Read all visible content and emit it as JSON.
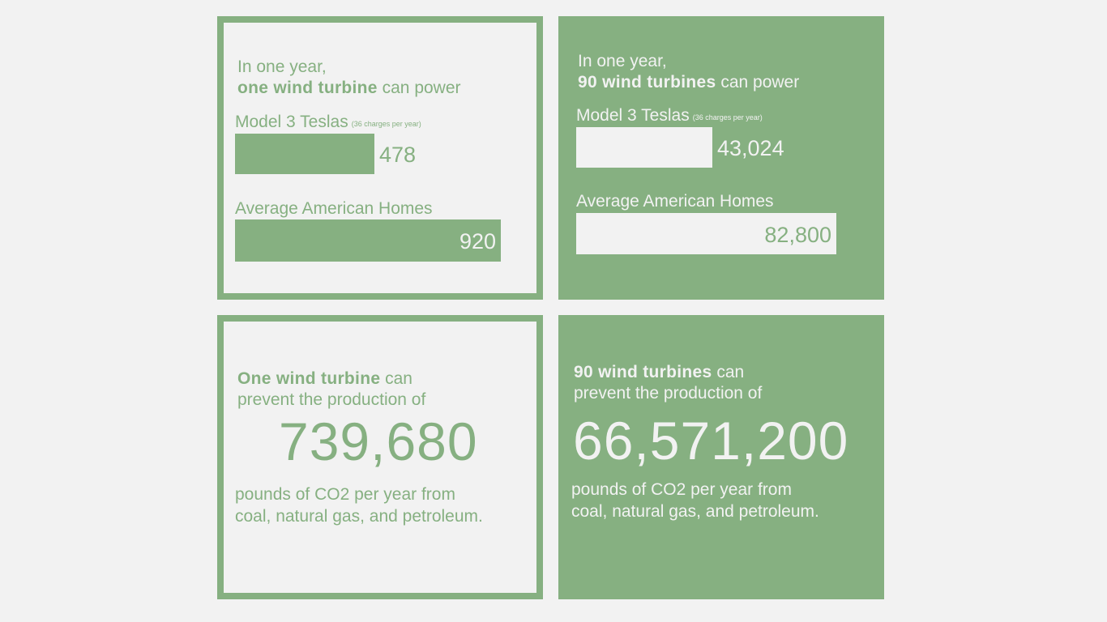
{
  "cards": {
    "one_power": {
      "intro_line1": "In one year,",
      "intro_bold": "one wind turbine",
      "intro_rest": " can power",
      "tesla_label": "Model 3 Teslas",
      "tesla_note": "(36 charges per year)",
      "tesla_value": "478",
      "homes_label": "Average American Homes",
      "homes_value": "920"
    },
    "ninety_power": {
      "intro_line1": "In one year,",
      "intro_bold": "90 wind turbines",
      "intro_rest": " can power",
      "tesla_label": "Model 3 Teslas",
      "tesla_note": "(36 charges per year)",
      "tesla_value": "43,024",
      "homes_label": "Average American Homes",
      "homes_value": "82,800"
    },
    "one_co2": {
      "intro_bold": "One wind turbine",
      "intro_rest": " can",
      "intro_line2": "prevent the production of",
      "value": "739,680",
      "foot_line1": "pounds of CO2 per year from",
      "foot_line2": "coal, natural gas, and petroleum."
    },
    "ninety_co2": {
      "intro_bold": "90 wind turbines",
      "intro_rest": " can",
      "intro_line2": "prevent the production of",
      "value": "66,571,200",
      "foot_line1": "pounds of CO2 per year from",
      "foot_line2": "coal, natural gas, and petroleum."
    }
  },
  "colors": {
    "accent": "#86b081",
    "background": "#f2f2f2"
  }
}
